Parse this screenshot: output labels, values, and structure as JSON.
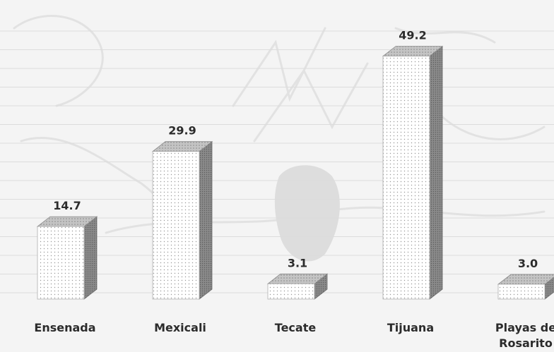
{
  "chart_data": {
    "type": "bar",
    "title": "",
    "xlabel": "",
    "ylabel": "",
    "categories": [
      "Ensenada",
      "Mexicali",
      "Tecate",
      "Tijuana",
      "Playas de Rosarito"
    ],
    "category_lines": [
      [
        "Ensenada"
      ],
      [
        "Mexicali"
      ],
      [
        "Tecate"
      ],
      [
        "Tijuana"
      ],
      [
        "Playas de",
        "Rosarito"
      ]
    ],
    "values": [
      14.7,
      29.9,
      3.1,
      49.2,
      3.0
    ],
    "value_labels": [
      "14.7",
      "29.9",
      "3.1",
      "49.2",
      "3.0"
    ],
    "ylim": [
      0,
      50
    ],
    "grid": true,
    "legend": "none",
    "style": "3d-dotted-bars",
    "colors": {
      "bar_front": "#ffffff",
      "bar_top": "#b9b9b9",
      "bar_side": "#7d7d7d",
      "dots": "#9a9a9a",
      "text": "#2b2b2b"
    }
  }
}
